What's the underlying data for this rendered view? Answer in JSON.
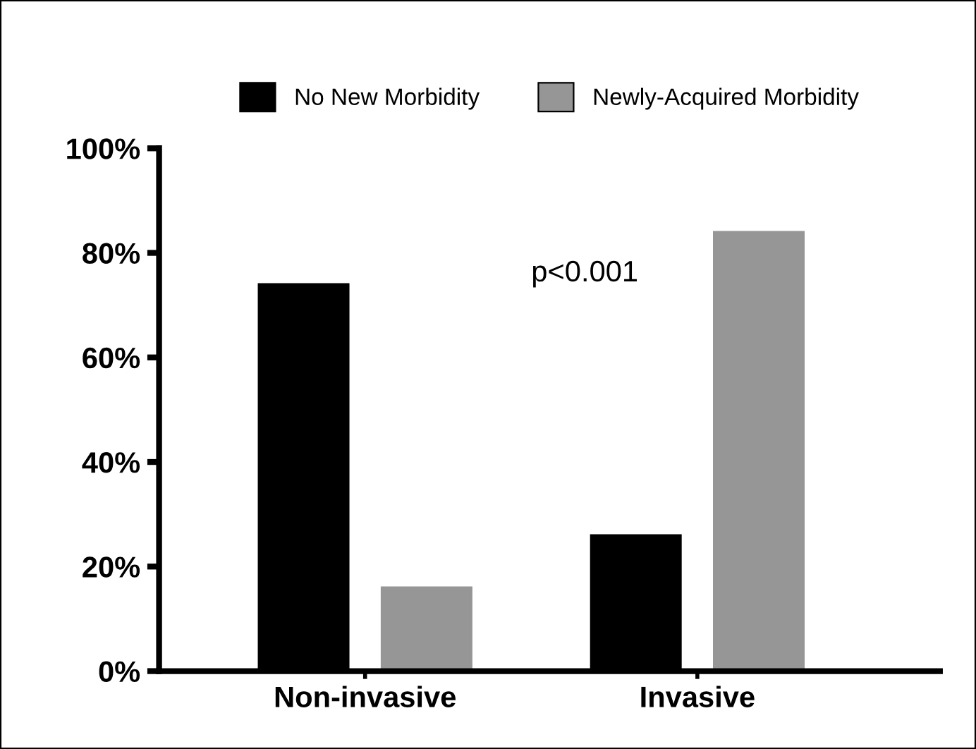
{
  "chart_data": {
    "type": "bar",
    "categories": [
      "Non-invasive",
      "Invasive"
    ],
    "series": [
      {
        "name": "No New Morbidity",
        "color": "#000000",
        "values": [
          74,
          26
        ]
      },
      {
        "name": "Newly-Acquired Morbidity",
        "color": "#969696",
        "values": [
          16,
          84
        ]
      }
    ],
    "ylim": [
      0,
      100
    ],
    "yticks": [
      {
        "value": 0,
        "label": "0%"
      },
      {
        "value": 20,
        "label": "20%"
      },
      {
        "value": 40,
        "label": "40%"
      },
      {
        "value": 60,
        "label": "60%"
      },
      {
        "value": 80,
        "label": "80%"
      },
      {
        "value": 100,
        "label": "100%"
      }
    ],
    "annotations": [
      "p<0.001"
    ],
    "legend": "top",
    "grid": false
  }
}
